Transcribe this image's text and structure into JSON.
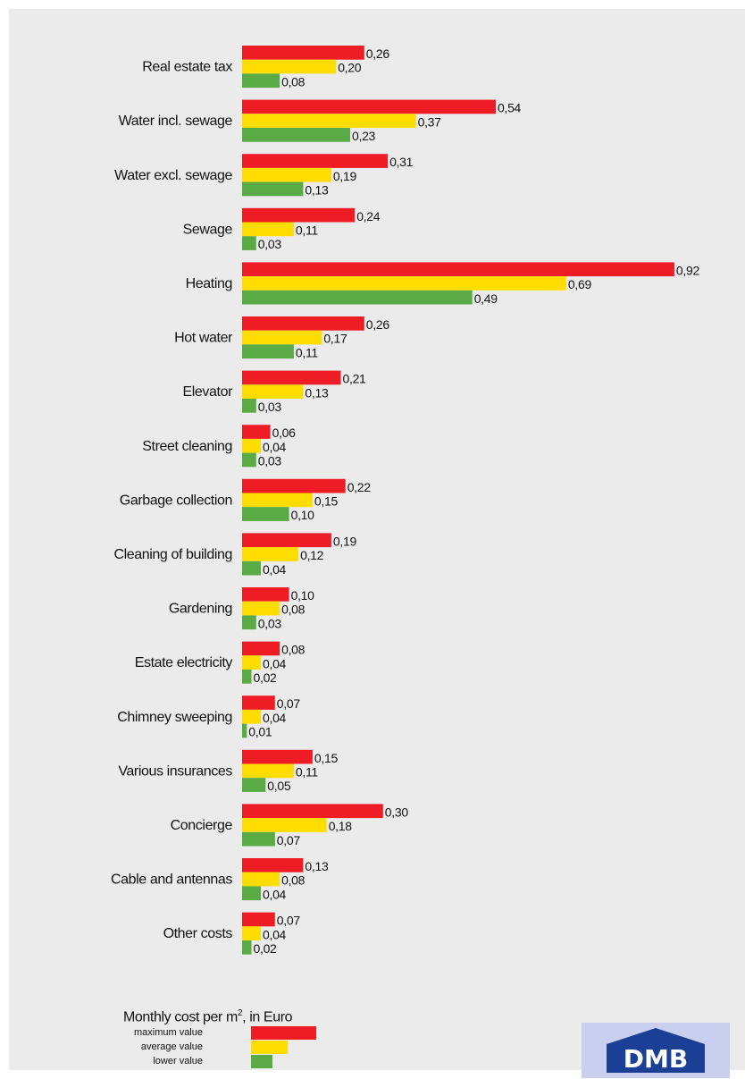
{
  "chart_data": {
    "type": "bar",
    "orientation": "horizontal",
    "categories": [
      "Real estate tax",
      "Water  incl. sewage",
      "Water  excl. sewage",
      "Sewage",
      "Heating",
      "Hot water",
      "Elevator",
      "Street cleaning",
      "Garbage collection",
      "Cleaning of building",
      "Gardening",
      "Estate electricity",
      "Chimney sweeping",
      "Various insurances",
      "Concierge",
      "Cable and antennas",
      "Other costs"
    ],
    "series": [
      {
        "name": "maximum value",
        "color": "#ee1c25",
        "values": [
          0.26,
          0.54,
          0.31,
          0.24,
          0.92,
          0.26,
          0.21,
          0.06,
          0.22,
          0.19,
          0.1,
          0.08,
          0.07,
          0.15,
          0.3,
          0.13,
          0.07
        ],
        "labels": [
          "0,26",
          "0,54",
          "0,31",
          "0,24",
          "0,92",
          "0,26",
          "0,21",
          "0,06",
          "0,22",
          "0,19",
          "0,10",
          "0,08",
          "0,07",
          "0,15",
          "0,30",
          "0,13",
          "0,07"
        ]
      },
      {
        "name": "average value",
        "color": "#ffdd00",
        "values": [
          0.2,
          0.37,
          0.19,
          0.11,
          0.69,
          0.17,
          0.13,
          0.04,
          0.15,
          0.12,
          0.08,
          0.04,
          0.04,
          0.11,
          0.18,
          0.08,
          0.04
        ],
        "labels": [
          "0,20",
          "0,37",
          "0,19",
          "0,11",
          "0,69",
          "0,17",
          "0,13",
          "0,04",
          "0,15",
          "0,12",
          "0,08",
          "0,04",
          "0,04",
          "0,11",
          "0,18",
          "0,08",
          "0,04"
        ]
      },
      {
        "name": "lower value",
        "color": "#5aab46",
        "values": [
          0.08,
          0.23,
          0.13,
          0.03,
          0.49,
          0.11,
          0.03,
          0.03,
          0.1,
          0.04,
          0.03,
          0.02,
          0.01,
          0.05,
          0.07,
          0.04,
          0.02
        ],
        "labels": [
          "0,08",
          "0,23",
          "0,13",
          "0,03",
          "0,49",
          "0,11",
          "0,03",
          "0,03",
          "0,10",
          "0,04",
          "0,03",
          "0,02",
          "0,01",
          "0,05",
          "0,07",
          "0,04",
          "0,02"
        ]
      }
    ],
    "xlim": [
      0,
      0.92
    ],
    "grid": false,
    "legend": {
      "title_prefix": "Monthly cost per m",
      "title_sup": "2",
      "title_suffix": ", in Euro",
      "placement": "bottom-left"
    }
  },
  "logo": {
    "text": "DMB",
    "background": "#c9cfee",
    "color": "#1b3f94"
  },
  "colors": {
    "panel_background": "#ebebeb",
    "text": "#111111"
  }
}
